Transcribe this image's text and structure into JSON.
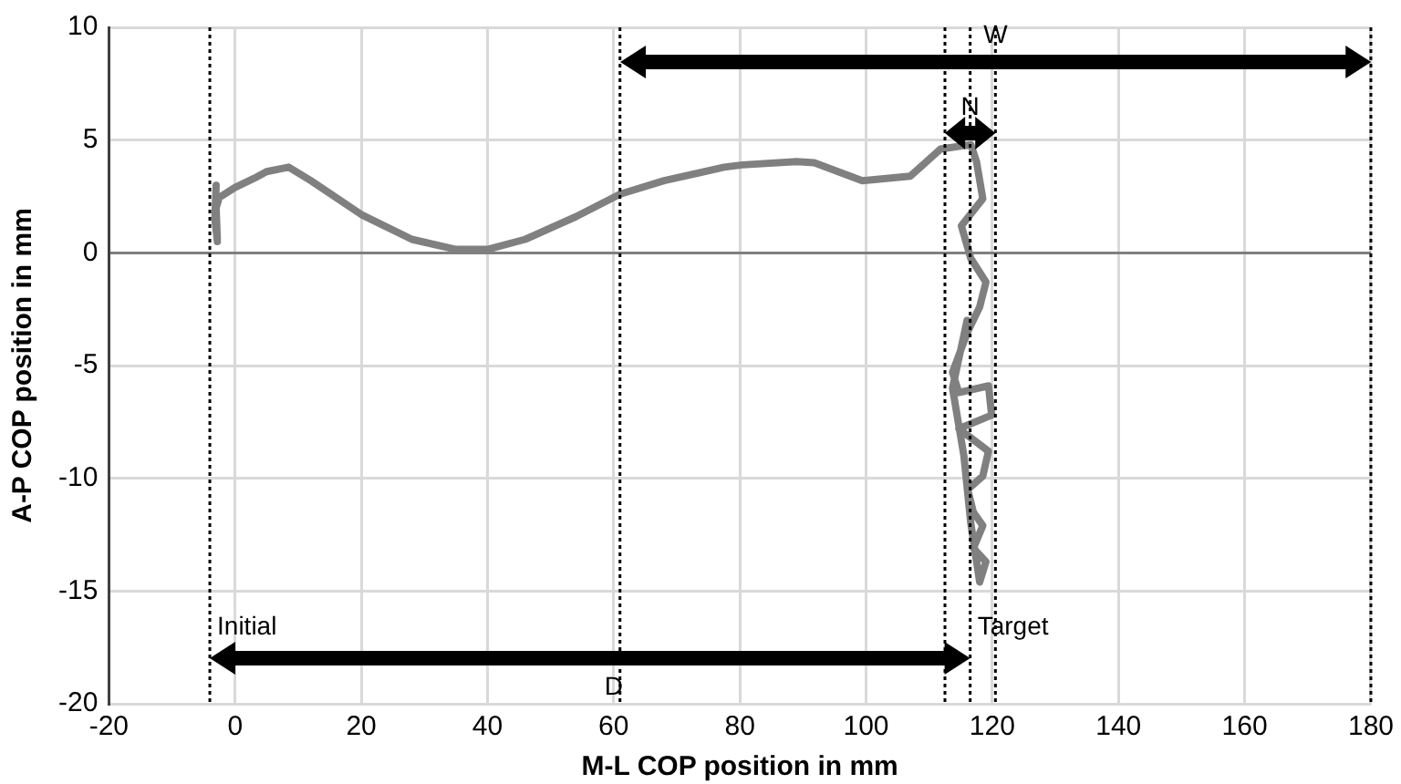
{
  "chart_data": {
    "type": "line",
    "xlabel": "M-L COP position in mm",
    "ylabel": "A-P COP position in mm",
    "xlim": [
      -20,
      180
    ],
    "xticks": [
      -20,
      0,
      20,
      40,
      60,
      80,
      100,
      120,
      140,
      160,
      180
    ],
    "ylim": [
      -20,
      10
    ],
    "yticks": [
      -20,
      -15,
      -10,
      -5,
      0,
      5,
      10
    ],
    "grid": true,
    "legend": false,
    "marker": "none",
    "line_style": "solid",
    "series": [
      {
        "color": "#808080",
        "x": [
          -3,
          -3.2,
          -2.8,
          -3,
          -2.5,
          0,
          3,
          5,
          8.5,
          12,
          20,
          28,
          35,
          40,
          46,
          54,
          61,
          68,
          77.5,
          80.4,
          89,
          91.8,
          99.4,
          107,
          111.8,
          116.6,
          117.5,
          118.5,
          115.1,
          116.6,
          119,
          118,
          116.1,
          113.7,
          114.7,
          119.4,
          119.9,
          114.7,
          119.4,
          118.5,
          116.1,
          117,
          118.5,
          117,
          119,
          118,
          116.6,
          115.5,
          113.7,
          116
        ],
        "values": [
          3,
          1.5,
          0.5,
          2,
          2.45,
          2.9,
          3.3,
          3.6,
          3.8,
          3.2,
          1.7,
          0.6,
          0.15,
          0.15,
          0.6,
          1.6,
          2.6,
          3.2,
          3.8,
          3.9,
          4.05,
          4,
          3.2,
          3.4,
          4.6,
          4.8,
          4.05,
          2.4,
          1.2,
          -0.25,
          -1.3,
          -2.4,
          -3.5,
          -5.3,
          -6.2,
          -5.9,
          -7.2,
          -7.8,
          -8.8,
          -9.9,
          -10.5,
          -11.5,
          -12.1,
          -13.1,
          -13.7,
          -14.6,
          -12,
          -9,
          -6,
          -3
        ]
      }
    ],
    "ref_lines": [
      {
        "axis": "x",
        "value": -4,
        "label": "Initial",
        "color": "#000000",
        "line_style": "dotted"
      },
      {
        "axis": "x",
        "value": 61,
        "color": "#000000",
        "line_style": "dotted"
      },
      {
        "axis": "x",
        "value": 116.5,
        "label": "Target",
        "color": "#000000",
        "line_style": "dotted"
      },
      {
        "axis": "x",
        "value": 112.5,
        "color": "#000000",
        "line_style": "dotted"
      },
      {
        "axis": "x",
        "value": 120.5,
        "color": "#000000",
        "line_style": "dotted"
      },
      {
        "axis": "x",
        "value": 180,
        "color": "#000000",
        "line_style": "dotted"
      }
    ],
    "annotations": [
      {
        "text": "W",
        "x": 120.5,
        "y": 8.5
      },
      {
        "text": "N",
        "x": 116.5,
        "y": 5.3
      },
      {
        "text": "D",
        "x": 60,
        "y": -18
      }
    ]
  }
}
